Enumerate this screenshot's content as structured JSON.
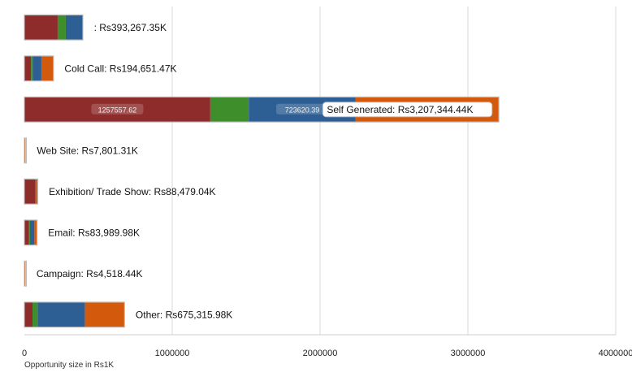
{
  "chart_data": {
    "type": "bar",
    "orientation": "horizontal",
    "stacked": true,
    "xlabel": "Opportunity size in Rs1K",
    "xlim": [
      0,
      4000000
    ],
    "xticks": [
      "0",
      "1000000",
      "2000000",
      "3000000",
      "4000000"
    ],
    "grid": true,
    "colors": [
      "#8e2b2b",
      "#3e8e2b",
      "#2e5f94",
      "#d35a0c"
    ],
    "categories": [
      {
        "label": ": Rs393,267.35K",
        "segments": [
          225000,
          55000,
          113267
        ]
      },
      {
        "label": "Cold Call: Rs194,651.47K",
        "segments": [
          45000,
          12000,
          58000,
          79651
        ]
      },
      {
        "label": "Self Generated: Rs3,207,344.44K",
        "segments": [
          1257557.62,
          260000,
          723620.39,
          966166.43
        ],
        "segment_labels": [
          "1257557.62",
          "",
          "723620.39",
          ""
        ]
      },
      {
        "label": "Web Site: Rs7,801.31K",
        "segments": [
          0,
          0,
          0,
          7801
        ]
      },
      {
        "label": "Exhibition/ Trade Show: Rs88,479.04K",
        "segments": [
          73000,
          0,
          5000,
          10479
        ]
      },
      {
        "label": "Email: Rs83,989.98K",
        "segments": [
          30000,
          8000,
          30000,
          15990
        ]
      },
      {
        "label": "Campaign: Rs4,518.44K",
        "segments": [
          1000,
          0,
          1000,
          2518
        ]
      },
      {
        "label": "Other: Rs675,315.98K",
        "segments": [
          55000,
          35000,
          320000,
          265316
        ]
      }
    ]
  }
}
